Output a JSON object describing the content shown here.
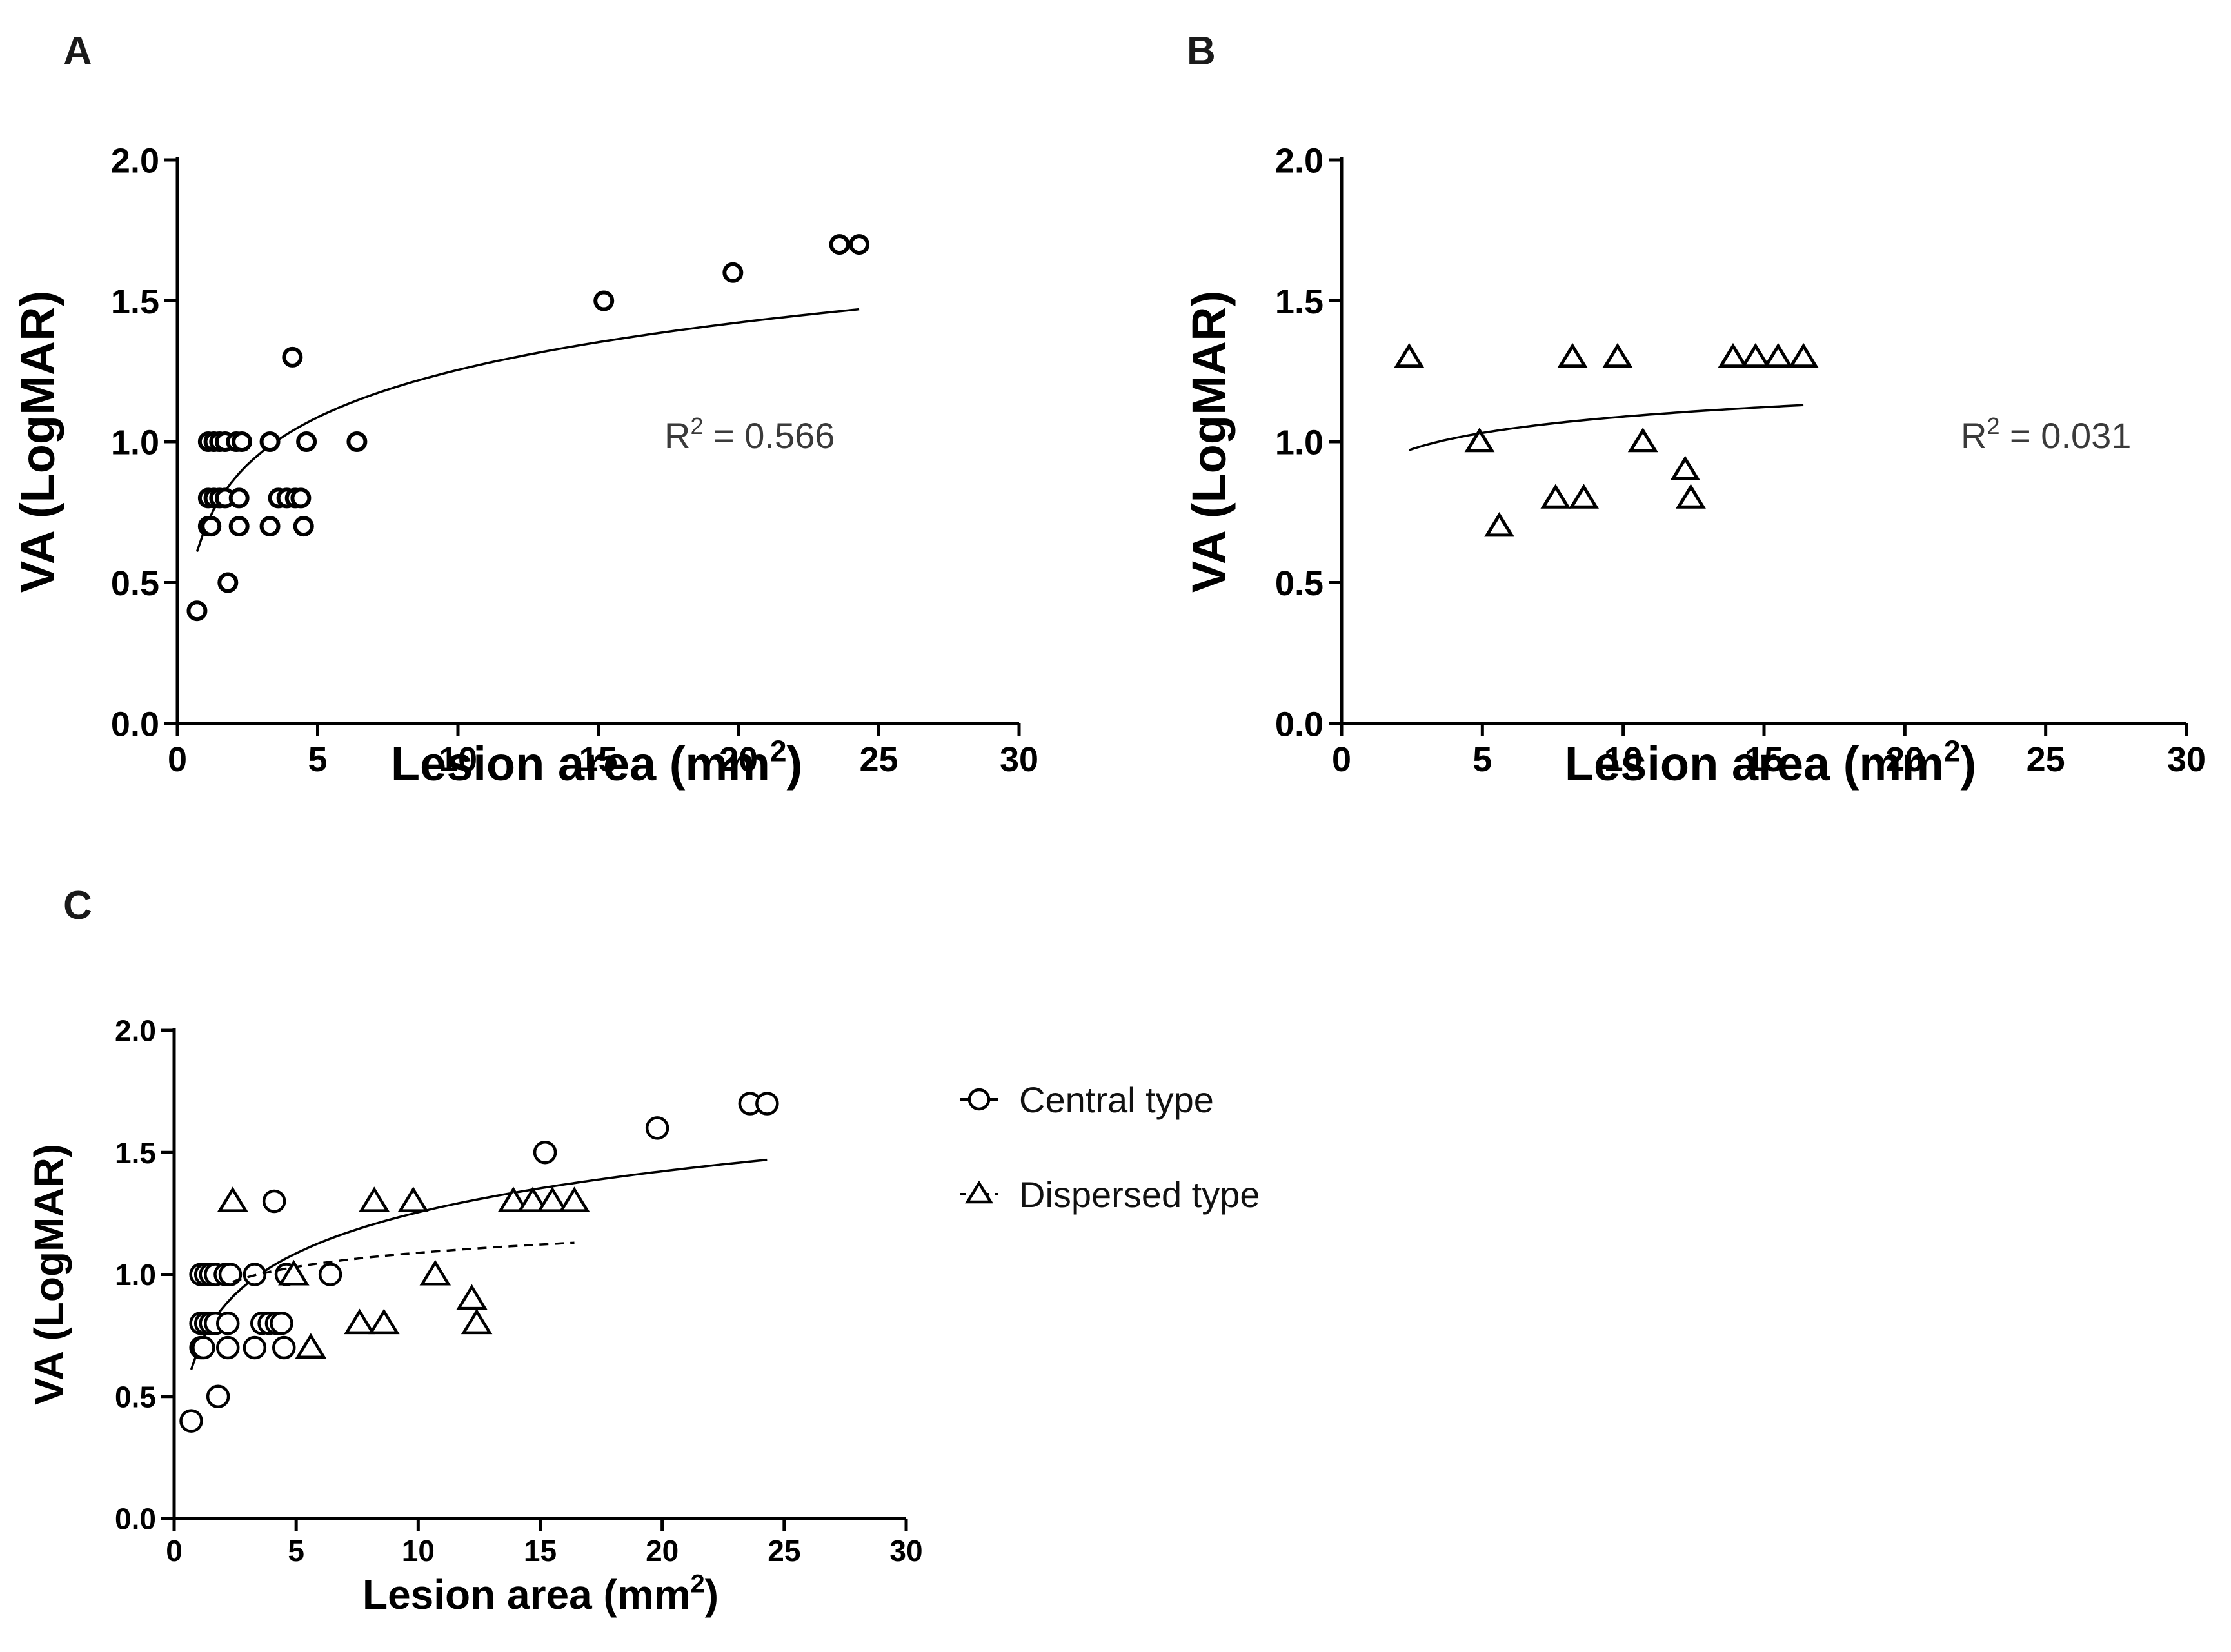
{
  "chart_data": [
    {
      "panel": "A",
      "type": "scatter",
      "xlabel": "Lesion area (mm",
      "xlabel_sup": "2",
      "xlabel_end": ")",
      "ylabel": "VA (LogMAR)",
      "xlim": [
        0,
        30
      ],
      "ylim": [
        0,
        2.0
      ],
      "xticks": [
        "0",
        "5",
        "10",
        "15",
        "20",
        "25",
        "30"
      ],
      "yticks": [
        "0.0",
        "0.5",
        "1.0",
        "1.5",
        "2.0"
      ],
      "annotation": "R",
      "annotation_sup": "2",
      "annotation_value": " = 0.566",
      "series": [
        {
          "marker": "circle",
          "fit": "log",
          "fit_range": [
            0.7,
            24.3
          ],
          "fit_ends": [
            0.61,
            1.47
          ],
          "points": [
            [
              0.7,
              0.4
            ],
            [
              1.1,
              0.7
            ],
            [
              1.2,
              0.7
            ],
            [
              1.1,
              0.8
            ],
            [
              1.3,
              0.8
            ],
            [
              1.5,
              0.8
            ],
            [
              1.7,
              0.8
            ],
            [
              2.2,
              0.8
            ],
            [
              1.1,
              1.0
            ],
            [
              1.3,
              1.0
            ],
            [
              1.5,
              1.0
            ],
            [
              1.7,
              1.0
            ],
            [
              2.1,
              1.0
            ],
            [
              2.3,
              1.0
            ],
            [
              1.8,
              0.5
            ],
            [
              2.2,
              0.7
            ],
            [
              3.3,
              0.7
            ],
            [
              4.5,
              0.7
            ],
            [
              3.3,
              1.0
            ],
            [
              3.6,
              0.8
            ],
            [
              3.9,
              0.8
            ],
            [
              4.2,
              0.8
            ],
            [
              4.4,
              0.8
            ],
            [
              4.1,
              1.3
            ],
            [
              4.6,
              1.0
            ],
            [
              6.4,
              1.0
            ],
            [
              15.2,
              1.5
            ],
            [
              19.8,
              1.6
            ],
            [
              23.6,
              1.7
            ],
            [
              24.3,
              1.7
            ]
          ]
        }
      ]
    },
    {
      "panel": "B",
      "type": "scatter",
      "xlabel": "Lesion area (mm",
      "xlabel_sup": "2",
      "xlabel_end": ")",
      "ylabel": "VA (LogMAR)",
      "xlim": [
        0,
        30
      ],
      "ylim": [
        0,
        2.0
      ],
      "xticks": [
        "0",
        "5",
        "10",
        "15",
        "20",
        "25",
        "30"
      ],
      "yticks": [
        "0.0",
        "0.5",
        "1.0",
        "1.5",
        "2.0"
      ],
      "annotation": "R",
      "annotation_sup": "2",
      "annotation_value": " = 0.031",
      "series": [
        {
          "marker": "triangle",
          "fit": "log",
          "fit_range": [
            2.4,
            16.4
          ],
          "fit_ends": [
            0.97,
            1.13
          ],
          "points": [
            [
              2.4,
              1.3
            ],
            [
              4.9,
              1.0
            ],
            [
              5.6,
              0.7
            ],
            [
              7.6,
              0.8
            ],
            [
              8.2,
              1.3
            ],
            [
              8.6,
              0.8
            ],
            [
              9.8,
              1.3
            ],
            [
              10.7,
              1.0
            ],
            [
              12.2,
              0.9
            ],
            [
              12.4,
              0.8
            ],
            [
              13.9,
              1.3
            ],
            [
              14.7,
              1.3
            ],
            [
              15.5,
              1.3
            ],
            [
              16.4,
              1.3
            ]
          ]
        }
      ]
    },
    {
      "panel": "C",
      "type": "scatter",
      "xlabel": "Lesion area (mm",
      "xlabel_sup": "2",
      "xlabel_end": ")",
      "ylabel": "VA (LogMAR)",
      "xlim": [
        0,
        30
      ],
      "ylim": [
        0,
        2.0
      ],
      "xticks": [
        "0",
        "5",
        "10",
        "15",
        "20",
        "25",
        "30"
      ],
      "yticks": [
        "0.0",
        "0.5",
        "1.0",
        "1.5",
        "2.0"
      ],
      "legend_position": "right",
      "series": [
        {
          "name": "Central type",
          "marker": "circle",
          "fit": "log",
          "line": "solid",
          "fit_range": [
            0.7,
            24.3
          ],
          "fit_ends": [
            0.61,
            1.47
          ],
          "points": [
            [
              0.7,
              0.4
            ],
            [
              1.1,
              0.7
            ],
            [
              1.2,
              0.7
            ],
            [
              1.1,
              0.8
            ],
            [
              1.3,
              0.8
            ],
            [
              1.5,
              0.8
            ],
            [
              1.7,
              0.8
            ],
            [
              2.2,
              0.8
            ],
            [
              1.1,
              1.0
            ],
            [
              1.3,
              1.0
            ],
            [
              1.5,
              1.0
            ],
            [
              1.7,
              1.0
            ],
            [
              2.1,
              1.0
            ],
            [
              2.3,
              1.0
            ],
            [
              1.8,
              0.5
            ],
            [
              2.2,
              0.7
            ],
            [
              3.3,
              0.7
            ],
            [
              4.5,
              0.7
            ],
            [
              3.3,
              1.0
            ],
            [
              3.6,
              0.8
            ],
            [
              3.9,
              0.8
            ],
            [
              4.2,
              0.8
            ],
            [
              4.4,
              0.8
            ],
            [
              4.1,
              1.3
            ],
            [
              4.6,
              1.0
            ],
            [
              6.4,
              1.0
            ],
            [
              15.2,
              1.5
            ],
            [
              19.8,
              1.6
            ],
            [
              23.6,
              1.7
            ],
            [
              24.3,
              1.7
            ]
          ]
        },
        {
          "name": "Dispersed type",
          "marker": "triangle",
          "fit": "log",
          "line": "dashed",
          "fit_range": [
            2.4,
            16.4
          ],
          "fit_ends": [
            0.97,
            1.13
          ],
          "points": [
            [
              2.4,
              1.3
            ],
            [
              4.9,
              1.0
            ],
            [
              5.6,
              0.7
            ],
            [
              7.6,
              0.8
            ],
            [
              8.2,
              1.3
            ],
            [
              8.6,
              0.8
            ],
            [
              9.8,
              1.3
            ],
            [
              10.7,
              1.0
            ],
            [
              12.2,
              0.9
            ],
            [
              12.4,
              0.8
            ],
            [
              13.9,
              1.3
            ],
            [
              14.7,
              1.3
            ],
            [
              15.5,
              1.3
            ],
            [
              16.4,
              1.3
            ]
          ]
        }
      ]
    }
  ]
}
